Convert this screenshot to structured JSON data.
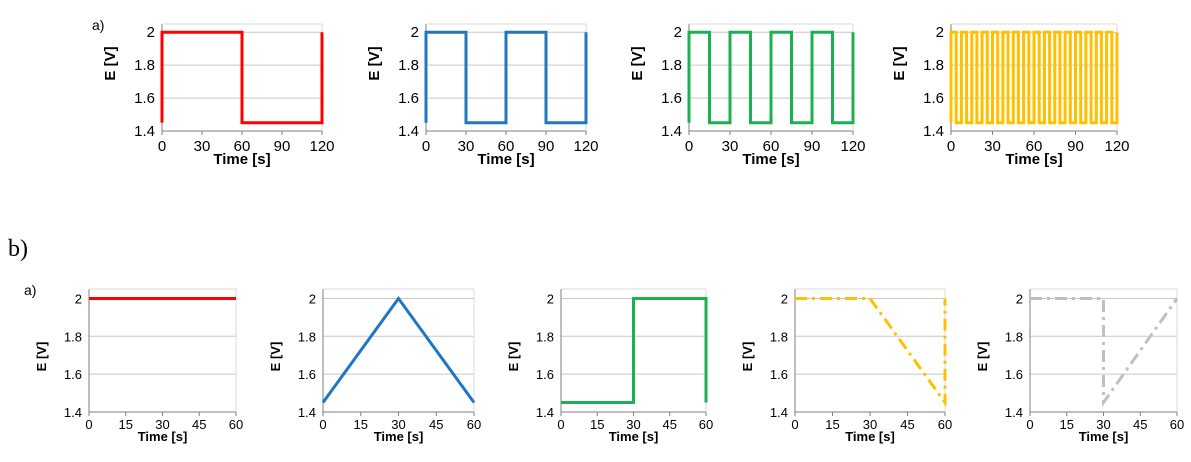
{
  "section_labels": {
    "top": "a)",
    "bottom": "b)"
  },
  "chart_data": [
    {
      "id": "a1",
      "type": "line",
      "panel_label": "a)",
      "xlabel": "Time [s]",
      "ylabel": "E [V]",
      "xlim": [
        0,
        120
      ],
      "ylim": [
        1.4,
        2.05
      ],
      "xticks": [
        0,
        30,
        60,
        90,
        120
      ],
      "yticks": [
        1.4,
        1.6,
        1.8,
        2.0
      ],
      "grid": true,
      "color": "#ff0000",
      "dash": "solid",
      "series": [
        {
          "x": [
            0,
            0,
            60,
            60,
            120,
            120
          ],
          "y": [
            1.45,
            2.0,
            2.0,
            1.45,
            1.45,
            2.0
          ]
        }
      ]
    },
    {
      "id": "a2",
      "type": "line",
      "xlabel": "Time [s]",
      "ylabel": "E [V]",
      "xlim": [
        0,
        120
      ],
      "ylim": [
        1.4,
        2.05
      ],
      "xticks": [
        0,
        30,
        60,
        90,
        120
      ],
      "yticks": [
        1.4,
        1.6,
        1.8,
        2.0
      ],
      "grid": true,
      "color": "#1f77c4",
      "dash": "solid",
      "series": [
        {
          "x": [
            0,
            0,
            30,
            30,
            60,
            60,
            90,
            90,
            120,
            120
          ],
          "y": [
            1.45,
            2.0,
            2.0,
            1.45,
            1.45,
            2.0,
            2.0,
            1.45,
            1.45,
            2.0
          ]
        }
      ]
    },
    {
      "id": "a3",
      "type": "line",
      "xlabel": "Time [s]",
      "ylabel": "E [V]",
      "xlim": [
        0,
        120
      ],
      "ylim": [
        1.4,
        2.05
      ],
      "xticks": [
        0,
        30,
        60,
        90,
        120
      ],
      "yticks": [
        1.4,
        1.6,
        1.8,
        2.0
      ],
      "grid": true,
      "color": "#1db050",
      "dash": "solid",
      "series": [
        {
          "x": [
            0,
            0,
            15,
            15,
            30,
            30,
            45,
            45,
            60,
            60,
            75,
            75,
            90,
            90,
            105,
            105,
            120,
            120
          ],
          "y": [
            1.45,
            2.0,
            2.0,
            1.45,
            1.45,
            2.0,
            2.0,
            1.45,
            1.45,
            2.0,
            2.0,
            1.45,
            1.45,
            2.0,
            2.0,
            1.45,
            1.45,
            2.0
          ]
        }
      ]
    },
    {
      "id": "a4",
      "type": "line",
      "xlabel": "Time [s]",
      "ylabel": "E [V]",
      "xlim": [
        0,
        120
      ],
      "ylim": [
        1.4,
        2.05
      ],
      "xticks": [
        0,
        30,
        60,
        90,
        120
      ],
      "yticks": [
        1.4,
        1.6,
        1.8,
        2.0
      ],
      "grid": true,
      "color": "#ffc000",
      "dash": "solid",
      "series": [
        {
          "x": [
            0,
            0,
            3.75,
            3.75,
            7.5,
            7.5,
            11.25,
            11.25,
            15,
            15,
            18.75,
            18.75,
            22.5,
            22.5,
            26.25,
            26.25,
            30,
            30,
            33.75,
            33.75,
            37.5,
            37.5,
            41.25,
            41.25,
            45,
            45,
            48.75,
            48.75,
            52.5,
            52.5,
            56.25,
            56.25,
            60,
            60,
            63.75,
            63.75,
            67.5,
            67.5,
            71.25,
            71.25,
            75,
            75,
            78.75,
            78.75,
            82.5,
            82.5,
            86.25,
            86.25,
            90,
            90,
            93.75,
            93.75,
            97.5,
            97.5,
            101.25,
            101.25,
            105,
            105,
            108.75,
            108.75,
            112.5,
            112.5,
            116.25,
            116.25,
            120,
            120
          ],
          "y": [
            1.45,
            2.0,
            2.0,
            1.45,
            1.45,
            2.0,
            2.0,
            1.45,
            1.45,
            2.0,
            2.0,
            1.45,
            1.45,
            2.0,
            2.0,
            1.45,
            1.45,
            2.0,
            2.0,
            1.45,
            1.45,
            2.0,
            2.0,
            1.45,
            1.45,
            2.0,
            2.0,
            1.45,
            1.45,
            2.0,
            2.0,
            1.45,
            1.45,
            2.0,
            2.0,
            1.45,
            1.45,
            2.0,
            2.0,
            1.45,
            1.45,
            2.0,
            2.0,
            1.45,
            1.45,
            2.0,
            2.0,
            1.45,
            1.45,
            2.0,
            2.0,
            1.45,
            1.45,
            2.0,
            2.0,
            1.45,
            1.45,
            2.0,
            2.0,
            1.45,
            1.45,
            2.0,
            2.0,
            1.45,
            1.45,
            2.0
          ]
        }
      ]
    },
    {
      "id": "b1",
      "type": "line",
      "panel_label": "a)",
      "xlabel": "Time [s]",
      "ylabel": "E [V]",
      "xlim": [
        0,
        60
      ],
      "ylim": [
        1.4,
        2.05
      ],
      "xticks": [
        0,
        15,
        30,
        45,
        60
      ],
      "yticks": [
        1.4,
        1.6,
        1.8,
        2.0
      ],
      "grid": true,
      "color": "#ff0000",
      "dash": "solid",
      "series": [
        {
          "x": [
            0,
            60
          ],
          "y": [
            2.0,
            2.0
          ]
        }
      ]
    },
    {
      "id": "b2",
      "type": "line",
      "xlabel": "Time [s]",
      "ylabel": "E [V]",
      "xlim": [
        0,
        60
      ],
      "ylim": [
        1.4,
        2.05
      ],
      "xticks": [
        0,
        15,
        30,
        45,
        60
      ],
      "yticks": [
        1.4,
        1.6,
        1.8,
        2.0
      ],
      "grid": true,
      "color": "#1f77c4",
      "dash": "solid",
      "series": [
        {
          "x": [
            0,
            30,
            60
          ],
          "y": [
            1.45,
            2.0,
            1.45
          ]
        }
      ]
    },
    {
      "id": "b3",
      "type": "line",
      "xlabel": "Time [s]",
      "ylabel": "E [V]",
      "xlim": [
        0,
        60
      ],
      "ylim": [
        1.4,
        2.05
      ],
      "xticks": [
        0,
        15,
        30,
        45,
        60
      ],
      "yticks": [
        1.4,
        1.6,
        1.8,
        2.0
      ],
      "grid": true,
      "color": "#1db050",
      "dash": "solid",
      "series": [
        {
          "x": [
            0,
            30,
            30,
            60,
            60
          ],
          "y": [
            1.45,
            1.45,
            2.0,
            2.0,
            1.45
          ]
        }
      ]
    },
    {
      "id": "b4",
      "type": "line",
      "xlabel": "Time [s]",
      "ylabel": "E [V]",
      "xlim": [
        0,
        60
      ],
      "ylim": [
        1.4,
        2.05
      ],
      "xticks": [
        0,
        15,
        30,
        45,
        60
      ],
      "yticks": [
        1.4,
        1.6,
        1.8,
        2.0
      ],
      "grid": true,
      "color": "#ffc000",
      "dash": "dashdot",
      "series": [
        {
          "x": [
            0,
            30,
            60,
            60
          ],
          "y": [
            2.0,
            2.0,
            1.45,
            2.0
          ]
        }
      ]
    },
    {
      "id": "b5",
      "type": "line",
      "xlabel": "Time [s]",
      "ylabel": "E [V]",
      "xlim": [
        0,
        60
      ],
      "ylim": [
        1.4,
        2.05
      ],
      "xticks": [
        0,
        15,
        30,
        45,
        60
      ],
      "yticks": [
        1.4,
        1.6,
        1.8,
        2.0
      ],
      "grid": true,
      "color": "#c0c0c0",
      "dash": "dashdot",
      "series": [
        {
          "x": [
            0,
            30,
            30,
            60
          ],
          "y": [
            2.0,
            2.0,
            1.45,
            2.0
          ]
        }
      ]
    }
  ]
}
